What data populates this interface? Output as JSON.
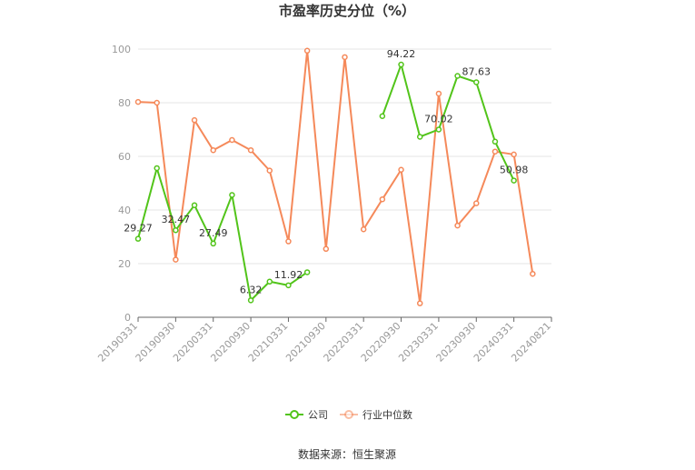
{
  "chart_data": {
    "type": "line",
    "title": "市盈率历史分位（%）",
    "ylim": [
      0,
      100
    ],
    "yticks": [
      0,
      20,
      40,
      60,
      80,
      100
    ],
    "xtick_labels": [
      "20190331",
      "20190930",
      "20200331",
      "20200930",
      "20210331",
      "20210930",
      "20220331",
      "20220930",
      "20230331",
      "20230930",
      "20240331",
      "20240821"
    ],
    "x": [
      "20190331",
      "20190630",
      "20190930",
      "20191231",
      "20200331",
      "20200630",
      "20200930",
      "20201231",
      "20210331",
      "20210630",
      "20210930",
      "20211231",
      "20220331",
      "20220630",
      "20220930",
      "20221231",
      "20230331",
      "20230630",
      "20230930",
      "20231231",
      "20240331",
      "20240630",
      "20240821"
    ],
    "grid": true,
    "legend_position": "bottom",
    "series": [
      {
        "name": "公司",
        "color": "#52c41a",
        "values": [
          29.27,
          55.6,
          32.47,
          41.8,
          27.49,
          45.6,
          6.32,
          13.3,
          11.92,
          16.8,
          null,
          null,
          null,
          75.0,
          94.22,
          67.3,
          70.02,
          90.0,
          87.63,
          65.5,
          50.98,
          null,
          null
        ],
        "labels": [
          {
            "index": 0,
            "text": "29.27"
          },
          {
            "index": 2,
            "text": "32.47"
          },
          {
            "index": 4,
            "text": "27.49"
          },
          {
            "index": 6,
            "text": "6.32"
          },
          {
            "index": 8,
            "text": "11.92"
          },
          {
            "index": 14,
            "text": "94.22"
          },
          {
            "index": 16,
            "text": "70.02"
          },
          {
            "index": 18,
            "text": "87.63"
          },
          {
            "index": 20,
            "text": "50.98"
          }
        ]
      },
      {
        "name": "行业中位数",
        "color": "#f5895a",
        "values": [
          80.3,
          80.0,
          21.5,
          73.5,
          62.3,
          66.1,
          62.3,
          54.7,
          28.3,
          99.4,
          25.5,
          97.0,
          32.8,
          44.0,
          55.0,
          5.2,
          83.4,
          34.2,
          42.5,
          61.8,
          60.7,
          16.2,
          null
        ]
      }
    ]
  },
  "source_text": "数据来源：恒生聚源"
}
